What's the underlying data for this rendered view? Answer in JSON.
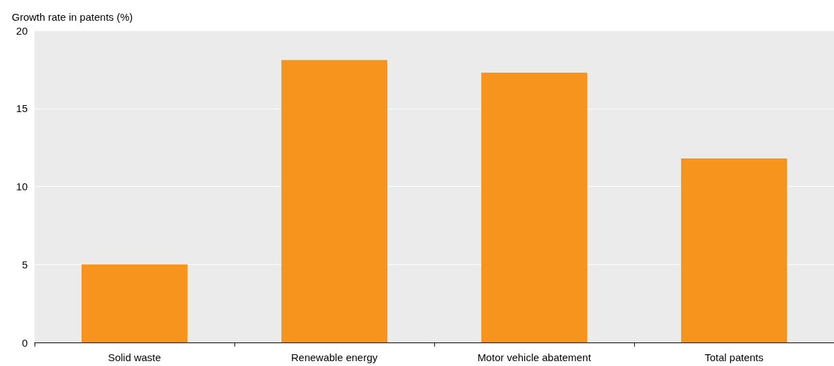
{
  "chart_data": {
    "type": "bar",
    "ylabel": "Growth rate in patents (%)",
    "categories": [
      "Solid waste",
      "Renewable energy",
      "Motor vehicle abatement",
      "Total patents"
    ],
    "values": [
      5.0,
      18.1,
      17.3,
      11.8
    ],
    "color": "#f7941d",
    "ylim": [
      0,
      20
    ],
    "yticks": [
      0,
      5,
      10,
      15,
      20
    ],
    "grid": "y"
  }
}
